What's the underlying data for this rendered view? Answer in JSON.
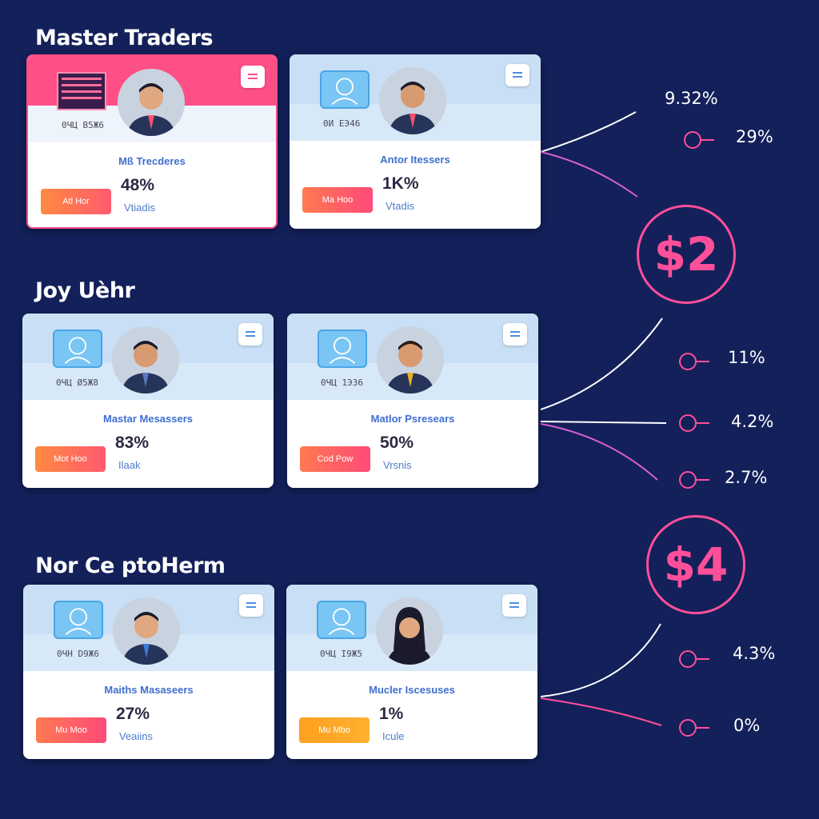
{
  "sections": [
    {
      "title": "Master Traders"
    },
    {
      "title": "Joy Uèhr"
    },
    {
      "title": "Nor Ce ptoHerm"
    }
  ],
  "cards": [
    {
      "code": "0ЧЦ B5Ж6",
      "name": "Mß Trecderes",
      "pct": "48%",
      "sub": "Vtiadis",
      "button": "Atl Hor"
    },
    {
      "code": "0И ЕЭ46",
      "name": "Antor Itessers",
      "pct": "1K%",
      "sub": "Vtadis",
      "button": "Ma Hoo"
    },
    {
      "code": "0ЧЦ Ø5Ж8",
      "name": "Mastar Mesassers",
      "pct": "83%",
      "sub": "Ilaak",
      "button": "Mot Hoo"
    },
    {
      "code": "0ЧЦ 1ЭЗ6",
      "name": "Matlor Psresears",
      "pct": "50%",
      "sub": "Vrsnis",
      "button": "Cod Pow"
    },
    {
      "code": "0ЧH D9Ж6",
      "name": "Maiths Masaseers",
      "pct": "27%",
      "sub": "Veaiins",
      "button": "Mu Moo"
    },
    {
      "code": "0ЧЦ I9Ж5",
      "name": "Mucler Iscesuses",
      "pct": "1%",
      "sub": "Icule",
      "button": "Mu Mbo"
    }
  ],
  "stats": {
    "s1": "9.32%",
    "s2": "29%",
    "s3": "11%",
    "s4": "4.2%",
    "s5": "2.7%",
    "s6": "4.3%",
    "s7": "0%"
  },
  "money": {
    "m1": "$2",
    "m2": "$4"
  },
  "colors": {
    "background": "#13205a",
    "accent": "#ff4f9a",
    "link": "#3f6fd0"
  },
  "icons": [
    "profile-icon",
    "menu-icon",
    "avatar",
    "flag-icon"
  ]
}
